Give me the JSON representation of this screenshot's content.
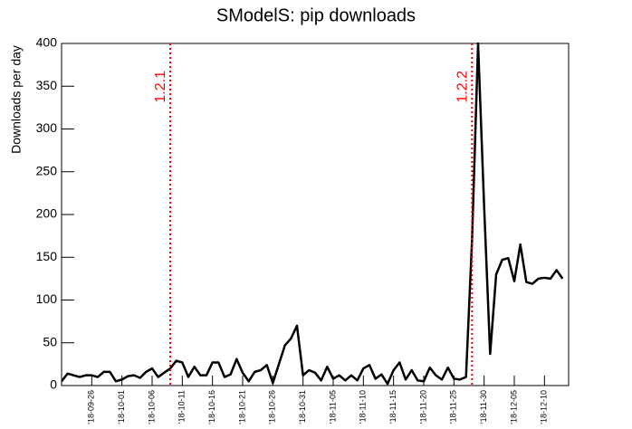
{
  "chart_data": {
    "type": "line",
    "title": "SModelS: pip downloads",
    "y_label": "Downloads per day",
    "x": [
      "2018-09-21",
      "2018-09-22",
      "2018-09-23",
      "2018-09-24",
      "2018-09-25",
      "2018-09-26",
      "2018-09-27",
      "2018-09-28",
      "2018-09-29",
      "2018-09-30",
      "2018-10-01",
      "2018-10-02",
      "2018-10-03",
      "2018-10-04",
      "2018-10-05",
      "2018-10-06",
      "2018-10-07",
      "2018-10-08",
      "2018-10-09",
      "2018-10-10",
      "2018-10-11",
      "2018-10-12",
      "2018-10-13",
      "2018-10-14",
      "2018-10-15",
      "2018-10-16",
      "2018-10-17",
      "2018-10-18",
      "2018-10-19",
      "2018-10-20",
      "2018-10-21",
      "2018-10-22",
      "2018-10-23",
      "2018-10-24",
      "2018-10-25",
      "2018-10-26",
      "2018-10-27",
      "2018-10-28",
      "2018-10-29",
      "2018-10-30",
      "2018-10-31",
      "2018-11-01",
      "2018-11-02",
      "2018-11-03",
      "2018-11-04",
      "2018-11-05",
      "2018-11-06",
      "2018-11-07",
      "2018-11-08",
      "2018-11-09",
      "2018-11-10",
      "2018-11-11",
      "2018-11-12",
      "2018-11-13",
      "2018-11-14",
      "2018-11-15",
      "2018-11-16",
      "2018-11-17",
      "2018-11-18",
      "2018-11-19",
      "2018-11-20",
      "2018-11-21",
      "2018-11-22",
      "2018-11-23",
      "2018-11-24",
      "2018-11-25",
      "2018-11-26",
      "2018-11-27",
      "2018-11-28",
      "2018-11-29",
      "2018-11-30",
      "2018-12-01",
      "2018-12-02",
      "2018-12-03",
      "2018-12-04",
      "2018-12-05",
      "2018-12-06",
      "2018-12-07",
      "2018-12-08",
      "2018-12-09",
      "2018-12-10",
      "2018-12-11",
      "2018-12-12",
      "2018-12-13"
    ],
    "series": [
      {
        "name": "downloads",
        "color": "#000000",
        "values": [
          5,
          14,
          12,
          10,
          12,
          12,
          10,
          16,
          16,
          5,
          7,
          11,
          12,
          9,
          16,
          20,
          10,
          15,
          20,
          29,
          27,
          10,
          22,
          12,
          12,
          27,
          27,
          10,
          13,
          31,
          15,
          5,
          16,
          18,
          24,
          3,
          25,
          47,
          55,
          70,
          12,
          18,
          15,
          6,
          22,
          8,
          12,
          6,
          12,
          6,
          20,
          24,
          8,
          13,
          2,
          18,
          27,
          7,
          18,
          6,
          5,
          21,
          12,
          7,
          21,
          8,
          7,
          10,
          170,
          400,
          210,
          37,
          130,
          147,
          149,
          122,
          165,
          121,
          119,
          125,
          126,
          125,
          135,
          125
        ]
      }
    ],
    "xlim": [
      "2018-09-21",
      "2018-12-14"
    ],
    "xticks": [
      {
        "value": "2018-09-26",
        "label": "'18-09-26"
      },
      {
        "value": "2018-10-01",
        "label": "'18-10-01"
      },
      {
        "value": "2018-10-06",
        "label": "'18-10-06"
      },
      {
        "value": "2018-10-11",
        "label": "'18-10-11"
      },
      {
        "value": "2018-10-16",
        "label": "'18-10-16"
      },
      {
        "value": "2018-10-21",
        "label": "'18-10-21"
      },
      {
        "value": "2018-10-26",
        "label": "'18-10-26"
      },
      {
        "value": "2018-10-31",
        "label": "'18-10-31"
      },
      {
        "value": "2018-11-05",
        "label": "'18-11-05"
      },
      {
        "value": "2018-11-10",
        "label": "'18-11-10"
      },
      {
        "value": "2018-11-15",
        "label": "'18-11-15"
      },
      {
        "value": "2018-11-20",
        "label": "'18-11-20"
      },
      {
        "value": "2018-11-25",
        "label": "'18-11-25"
      },
      {
        "value": "2018-11-30",
        "label": "'18-11-30"
      },
      {
        "value": "2018-12-05",
        "label": "'18-12-05"
      },
      {
        "value": "2018-12-10",
        "label": "'18-12-10"
      }
    ],
    "ylim": [
      0,
      400
    ],
    "yticks": [
      0,
      50,
      100,
      150,
      200,
      250,
      300,
      350,
      400
    ],
    "grid": false,
    "markers": [
      {
        "x": "2018-10-09",
        "label": "1.2.1",
        "color": "#ff0000"
      },
      {
        "x": "2018-11-28",
        "label": "1.2.2",
        "color": "#ff0000"
      }
    ]
  }
}
